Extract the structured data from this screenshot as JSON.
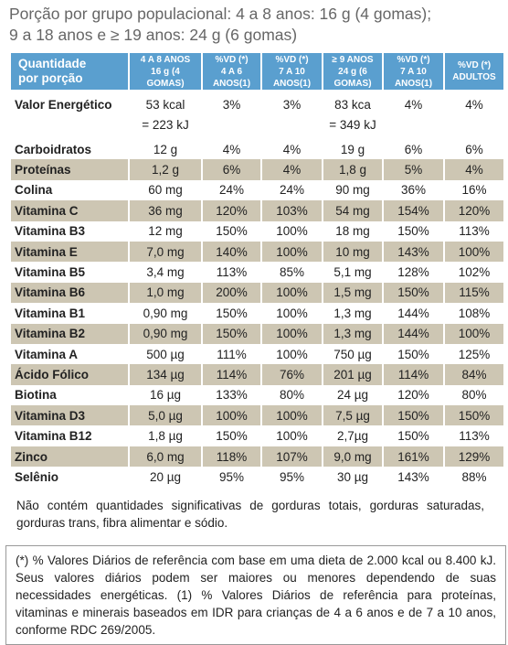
{
  "header": {
    "title": [
      "Porção por grupo populacional: 4 a 8 anos: 16 g (4 gomas);",
      "9 a 18 anos e ≥ 19 anos: 24 g (6 gomas)"
    ]
  },
  "table": {
    "columns": [
      [
        "Quantidade",
        "por porção"
      ],
      [
        "4 A 8 ANOS",
        "16 g (4 GOMAS)"
      ],
      [
        "%VD (*)",
        "4 A 6 ANOS(1)"
      ],
      [
        "%VD (*)",
        "7 A 10 ANOS(1)"
      ],
      [
        "≥ 9 ANOS",
        "24 g (6 GOMAS)"
      ],
      [
        "%VD (*)",
        "7 A 10 ANOS(1)"
      ],
      [
        "%VD (*)",
        "ADULTOS"
      ]
    ],
    "rows": [
      [
        [
          "Valor Energético"
        ],
        [
          "53 kcal",
          "= 223 kJ"
        ],
        [
          "3%"
        ],
        [
          "3%"
        ],
        [
          "83 kca",
          "= 349 kJ"
        ],
        [
          "4%"
        ],
        [
          "4%"
        ]
      ],
      [
        "Carboidratos",
        "12 g",
        "4%",
        "4%",
        "19 g",
        "6%",
        "6%"
      ],
      [
        "Proteínas",
        "1,2 g",
        "6%",
        "4%",
        "1,8 g",
        "5%",
        "4%"
      ],
      [
        "Colina",
        "60 mg",
        "24%",
        "24%",
        "90 mg",
        "36%",
        "16%"
      ],
      [
        "Vitamina C",
        "36 mg",
        "120%",
        "103%",
        "54 mg",
        "154%",
        "120%"
      ],
      [
        "Vitamina B3",
        "12 mg",
        "150%",
        "100%",
        "18 mg",
        "150%",
        "113%"
      ],
      [
        "Vitamina E",
        "7,0 mg",
        "140%",
        "100%",
        "10 mg",
        "143%",
        "100%"
      ],
      [
        "Vitamina B5",
        "3,4 mg",
        "113%",
        "85%",
        "5,1 mg",
        "128%",
        "102%"
      ],
      [
        "Vitamina B6",
        "1,0 mg",
        "200%",
        "100%",
        "1,5 mg",
        "150%",
        "115%"
      ],
      [
        "Vitamina B1",
        "0,90 mg",
        "150%",
        "100%",
        "1,3 mg",
        "144%",
        "108%"
      ],
      [
        "Vitamina B2",
        "0,90 mg",
        "150%",
        "100%",
        "1,3 mg",
        "144%",
        "100%"
      ],
      [
        "Vitamina A",
        "500 µg",
        "111%",
        "100%",
        "750 µg",
        "150%",
        "125%"
      ],
      [
        "Ácido Fólico",
        "134 µg",
        "114%",
        "76%",
        "201 µg",
        "114%",
        "84%"
      ],
      [
        "Biotina",
        "16 µg",
        "133%",
        "80%",
        "24 µg",
        "120%",
        "80%"
      ],
      [
        "Vitamina D3",
        "5,0 µg",
        "100%",
        "100%",
        "7,5 µg",
        "150%",
        "150%"
      ],
      [
        "Vitamina B12",
        "1,8 µg",
        "150%",
        "100%",
        "2,7µg",
        "150%",
        "113%"
      ],
      [
        "Zinco",
        "6,0 mg",
        "118%",
        "107%",
        "9,0 mg",
        "161%",
        "129%"
      ],
      [
        "Selênio",
        "20 µg",
        "95%",
        "95%",
        "30 µg",
        "143%",
        "88%"
      ]
    ]
  },
  "notes": [
    "Não contém quantidades significativas de gorduras totais, gorduras saturadas, gorduras trans, fibra alimentar e sódio.",
    "(*) % Valores Diários de referência com base em uma dieta de 2.000 kcal ou 8.400 kJ. Seus valores diários podem ser maiores ou menores dependendo de suas necessidades energéticas. (1) % Valores Diários de referência para proteínas, vitaminas e minerais baseados em IDR para crianças de 4 a 6 anos e de 7 a 10 anos, conforme RDC 269/2005."
  ]
}
